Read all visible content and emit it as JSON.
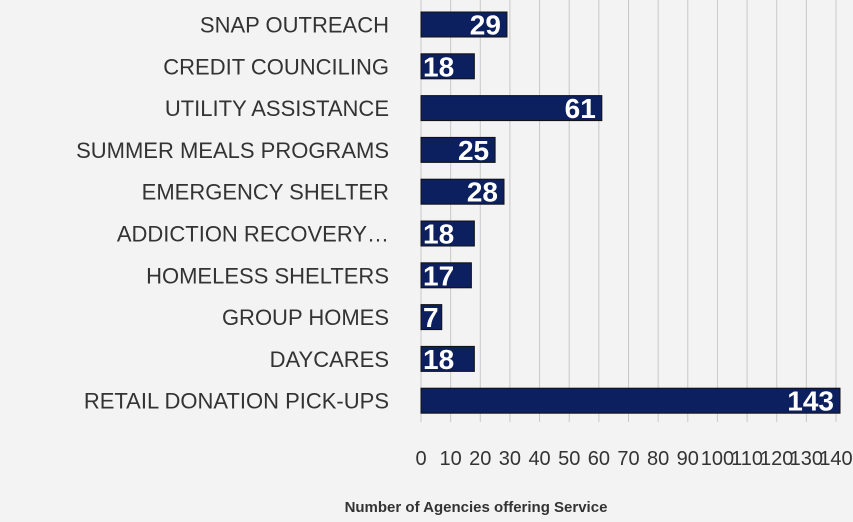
{
  "chart_data": {
    "type": "bar",
    "orientation": "horizontal",
    "categories": [
      "SNAP OUTREACH",
      "CREDIT COUNCILING",
      "UTILITY ASSISTANCE",
      "SUMMER MEALS PROGRAMS",
      "EMERGENCY SHELTER",
      "ADDICTION RECOVERY…",
      "HOMELESS SHELTERS",
      "GROUP HOMES",
      "DAYCARES",
      "RETAIL DONATION PICK-UPS"
    ],
    "values": [
      29,
      18,
      61,
      25,
      28,
      18,
      17,
      7,
      18,
      143
    ],
    "xlabel": "Number of Agencies offering Service",
    "ylabel": "",
    "xlim": [
      0,
      140
    ],
    "xticks": [
      "0",
      "10",
      "20",
      "30",
      "40",
      "50",
      "60",
      "70",
      "80",
      "90",
      "100",
      "110",
      "120",
      "130",
      "140"
    ],
    "grid": true,
    "bar_color": "#0c1f5e",
    "label_color": "#ffffff"
  }
}
